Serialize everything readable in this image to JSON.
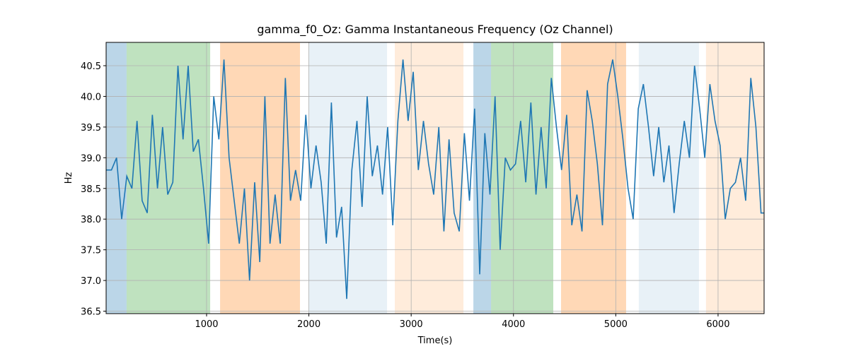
{
  "chart_data": {
    "type": "line",
    "title": "gamma_f0_Oz: Gamma Instantaneous Frequency (Oz Channel)",
    "xlabel": "Time(s)",
    "ylabel": "Hz",
    "xlim": [
      18,
      6450
    ],
    "ylim": [
      36.46,
      40.88
    ],
    "xticks": [
      1000,
      2000,
      3000,
      4000,
      5000,
      6000
    ],
    "yticks": [
      36.5,
      {
        "value": 37,
        "label": "37.0"
      },
      37.5,
      {
        "value": 38,
        "label": "38.0"
      },
      38.5,
      {
        "value": 39,
        "label": "39.0"
      },
      39.5,
      {
        "value": 40,
        "label": "40.0"
      },
      40.5
    ],
    "grid": true,
    "spans": [
      {
        "start": 18,
        "end": 218,
        "color": "#1f77b4",
        "alpha": 0.3
      },
      {
        "start": 218,
        "end": 1035,
        "color": "#2ca02c",
        "alpha": 0.3
      },
      {
        "start": 1132,
        "end": 1913,
        "color": "#ff7f0e",
        "alpha": 0.3
      },
      {
        "start": 1996,
        "end": 2764,
        "color": "#1f77b4",
        "alpha": 0.1
      },
      {
        "start": 2840,
        "end": 3511,
        "color": "#ff7f0e",
        "alpha": 0.15
      },
      {
        "start": 3608,
        "end": 3781,
        "color": "#1f77b4",
        "alpha": 0.3
      },
      {
        "start": 3781,
        "end": 4389,
        "color": "#2ca02c",
        "alpha": 0.3
      },
      {
        "start": 4465,
        "end": 5101,
        "color": "#ff7f0e",
        "alpha": 0.3
      },
      {
        "start": 5225,
        "end": 5813,
        "color": "#1f77b4",
        "alpha": 0.1
      },
      {
        "start": 5882,
        "end": 6450,
        "color": "#ff7f0e",
        "alpha": 0.15
      }
    ],
    "series": [
      {
        "color": "#1f77b4",
        "x": [
          20,
          70,
          120,
          170,
          220,
          270,
          320,
          370,
          420,
          470,
          520,
          570,
          620,
          670,
          720,
          770,
          820,
          870,
          920,
          970,
          1020,
          1070,
          1120,
          1170,
          1220,
          1270,
          1320,
          1370,
          1420,
          1470,
          1520,
          1570,
          1620,
          1670,
          1720,
          1770,
          1820,
          1870,
          1920,
          1970,
          2020,
          2070,
          2120,
          2170,
          2220,
          2270,
          2320,
          2370,
          2420,
          2470,
          2520,
          2570,
          2620,
          2670,
          2720,
          2770,
          2820,
          2870,
          2920,
          2970,
          3020,
          3070,
          3120,
          3170,
          3220,
          3270,
          3320,
          3370,
          3420,
          3470,
          3520,
          3570,
          3620,
          3670,
          3720,
          3770,
          3820,
          3870,
          3920,
          3970,
          4020,
          4070,
          4120,
          4170,
          4220,
          4270,
          4320,
          4370,
          4420,
          4470,
          4520,
          4570,
          4620,
          4670,
          4720,
          4770,
          4820,
          4870,
          4920,
          4970,
          5020,
          5070,
          5120,
          5170,
          5220,
          5270,
          5320,
          5370,
          5420,
          5470,
          5520,
          5570,
          5620,
          5670,
          5720,
          5770,
          5820,
          5870,
          5920,
          5970,
          6020,
          6070,
          6120,
          6170,
          6220,
          6270,
          6320,
          6370,
          6420,
          6450
        ],
        "values": [
          38.8,
          38.8,
          39.0,
          38.0,
          38.7,
          38.5,
          39.6,
          38.3,
          38.1,
          39.7,
          38.5,
          39.5,
          38.4,
          38.6,
          40.5,
          39.3,
          40.5,
          39.1,
          39.3,
          38.5,
          37.6,
          40.0,
          39.3,
          40.6,
          39.0,
          38.3,
          37.6,
          38.5,
          37.0,
          38.6,
          37.3,
          40.0,
          37.6,
          38.4,
          37.6,
          40.3,
          38.3,
          38.8,
          38.3,
          39.7,
          38.5,
          39.2,
          38.6,
          37.6,
          39.9,
          37.7,
          38.2,
          36.7,
          38.8,
          39.6,
          38.2,
          40.0,
          38.7,
          39.2,
          38.4,
          39.5,
          37.9,
          39.6,
          40.6,
          39.6,
          40.4,
          38.8,
          39.6,
          38.9,
          38.4,
          39.5,
          37.8,
          39.3,
          38.1,
          37.8,
          39.4,
          38.3,
          39.8,
          37.1,
          39.4,
          38.4,
          40.0,
          37.5,
          39.0,
          38.8,
          38.9,
          39.6,
          38.6,
          39.9,
          38.4,
          39.5,
          38.5,
          40.3,
          39.5,
          38.8,
          39.7,
          37.9,
          38.4,
          37.8,
          40.1,
          39.6,
          38.9,
          37.9,
          40.2,
          40.6,
          40.0,
          39.3,
          38.5,
          38.0,
          39.8,
          40.2,
          39.5,
          38.7,
          39.5,
          38.6,
          39.2,
          38.1,
          38.9,
          39.6,
          39.0,
          40.5,
          39.8,
          39.0,
          40.2,
          39.6,
          39.2,
          38.0,
          38.5,
          38.6,
          39.0,
          38.3,
          40.3,
          39.5,
          38.1,
          38.1
        ]
      }
    ]
  }
}
